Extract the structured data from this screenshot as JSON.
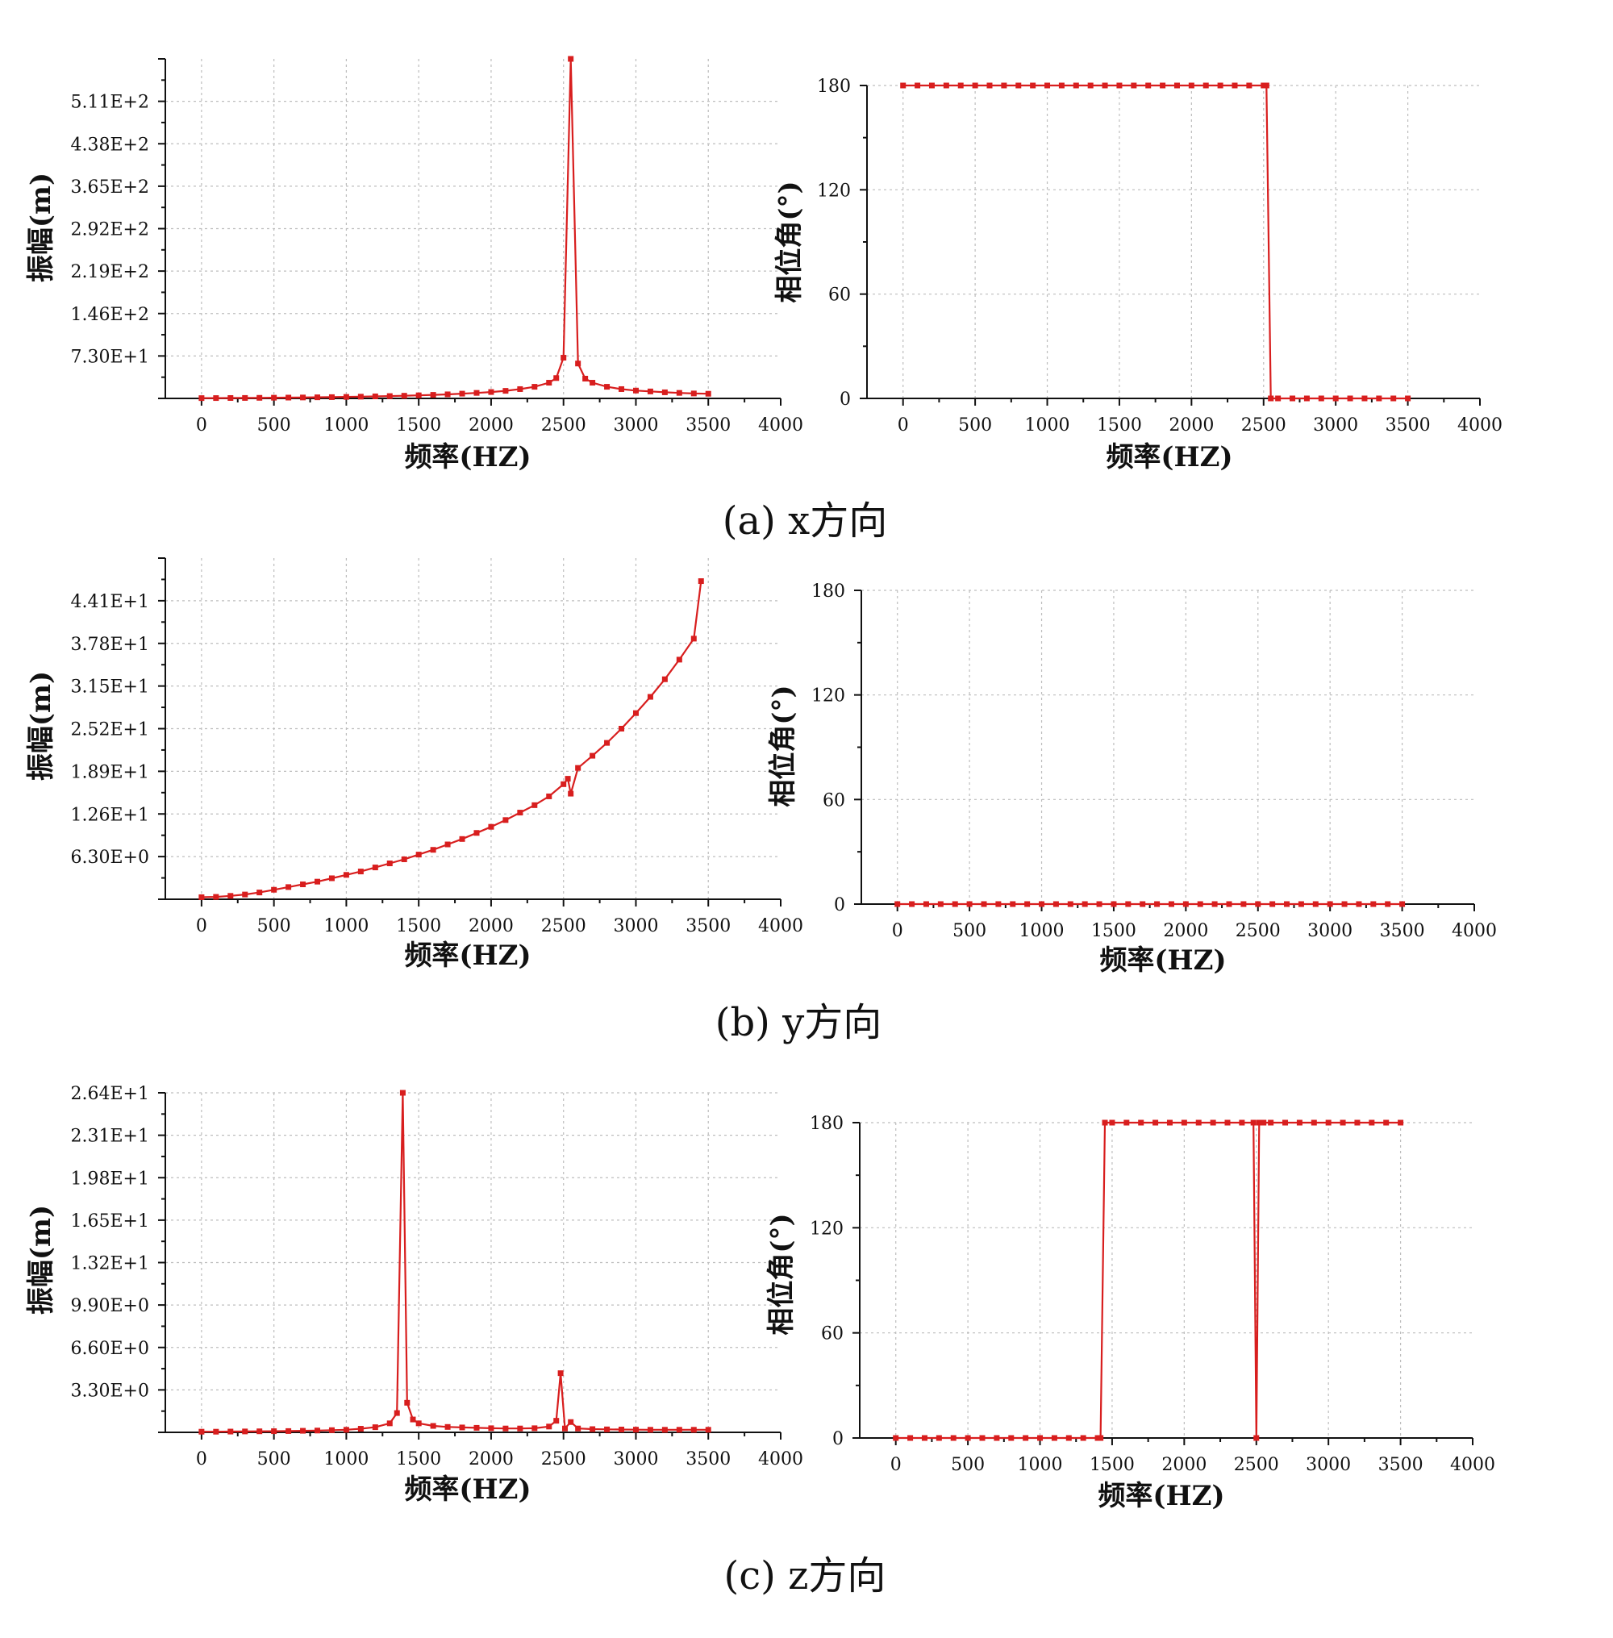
{
  "figure": {
    "captions": [
      "(a) x方向",
      "(b) y方向",
      "(c) z方向"
    ]
  },
  "colors": {
    "series": "#d81e1e",
    "grid": "#bdbdbd",
    "axis": "#111111"
  },
  "chart_data": [
    {
      "id": "a-amp",
      "type": "line",
      "xlabel": "频率(HZ)",
      "ylabel": "振幅(m)",
      "xlim": [
        -250,
        4000
      ],
      "ylim": [
        0,
        584
      ],
      "xticks": [
        0,
        500,
        1000,
        1500,
        2000,
        2500,
        3000,
        3500,
        4000
      ],
      "yticks": [
        73,
        146,
        219,
        292,
        365,
        438,
        511
      ],
      "ytick_labels": [
        "7.30E+1",
        "1.46E+2",
        "2.19E+2",
        "2.92E+2",
        "3.65E+2",
        "4.38E+2",
        "5.11E+2"
      ],
      "grid": true,
      "x": [
        0,
        100,
        200,
        300,
        400,
        500,
        600,
        700,
        800,
        900,
        1000,
        1100,
        1200,
        1300,
        1400,
        1500,
        1600,
        1700,
        1800,
        1900,
        2000,
        2100,
        2200,
        2300,
        2400,
        2450,
        2500,
        2550,
        2600,
        2650,
        2700,
        2800,
        2900,
        3000,
        3100,
        3200,
        3300,
        3400,
        3500
      ],
      "y": [
        0.5,
        0.6,
        0.7,
        0.8,
        1,
        1.2,
        1.4,
        1.6,
        1.9,
        2.2,
        2.6,
        3,
        3.5,
        4,
        4.6,
        5.3,
        6.1,
        7,
        8.2,
        9.5,
        11,
        13,
        16,
        20,
        27,
        35,
        70,
        584,
        60,
        34,
        27,
        20,
        16,
        13.5,
        12,
        10.5,
        9.5,
        8.5,
        8
      ]
    },
    {
      "id": "a-phase",
      "type": "line",
      "xlabel": "频率(HZ)",
      "ylabel": "相位角(°)",
      "xlim": [
        -250,
        4000
      ],
      "ylim": [
        0,
        180
      ],
      "xticks": [
        0,
        500,
        1000,
        1500,
        2000,
        2500,
        3000,
        3500,
        4000
      ],
      "yticks": [
        0,
        60,
        120,
        180
      ],
      "ytick_labels": [
        "0",
        "60",
        "120",
        "180"
      ],
      "grid": true,
      "x": [
        0,
        100,
        200,
        300,
        400,
        500,
        600,
        700,
        800,
        900,
        1000,
        1100,
        1200,
        1300,
        1400,
        1500,
        1600,
        1700,
        1800,
        1900,
        2000,
        2100,
        2200,
        2300,
        2400,
        2500,
        2520,
        2550,
        2600,
        2700,
        2800,
        2900,
        3000,
        3100,
        3200,
        3300,
        3400,
        3500
      ],
      "y": [
        180,
        180,
        180,
        180,
        180,
        180,
        180,
        180,
        180,
        180,
        180,
        180,
        180,
        180,
        180,
        180,
        180,
        180,
        180,
        180,
        180,
        180,
        180,
        180,
        180,
        180,
        180,
        0,
        0,
        0,
        0,
        0,
        0,
        0,
        0,
        0,
        0,
        0
      ]
    },
    {
      "id": "b-amp",
      "type": "line",
      "xlabel": "频率(HZ)",
      "ylabel": "振幅(m)",
      "xlim": [
        -250,
        4000
      ],
      "ylim": [
        0,
        50.4
      ],
      "xticks": [
        0,
        500,
        1000,
        1500,
        2000,
        2500,
        3000,
        3500,
        4000
      ],
      "yticks": [
        6.3,
        12.6,
        18.9,
        25.2,
        31.5,
        37.8,
        44.1
      ],
      "ytick_labels": [
        "6.30E+0",
        "1.26E+1",
        "1.89E+1",
        "2.52E+1",
        "3.15E+1",
        "3.78E+1",
        "4.41E+1"
      ],
      "grid": true,
      "x": [
        0,
        100,
        200,
        300,
        400,
        500,
        600,
        700,
        800,
        900,
        1000,
        1100,
        1200,
        1300,
        1400,
        1500,
        1600,
        1700,
        1800,
        1900,
        2000,
        2100,
        2200,
        2300,
        2400,
        2500,
        2530,
        2550,
        2600,
        2700,
        2800,
        2900,
        3000,
        3100,
        3200,
        3300,
        3400,
        3450
      ],
      "y": [
        0.3,
        0.35,
        0.5,
        0.7,
        1,
        1.4,
        1.8,
        2.2,
        2.6,
        3.1,
        3.6,
        4.1,
        4.7,
        5.3,
        5.9,
        6.6,
        7.3,
        8.1,
        8.9,
        9.8,
        10.7,
        11.7,
        12.8,
        13.9,
        15.2,
        17,
        17.8,
        15.6,
        19.4,
        21.2,
        23.1,
        25.2,
        27.5,
        29.9,
        32.5,
        35.4,
        38.5,
        47
      ]
    },
    {
      "id": "b-phase",
      "type": "line",
      "xlabel": "频率(HZ)",
      "ylabel": "相位角(°)",
      "xlim": [
        -250,
        4000
      ],
      "ylim": [
        0,
        180
      ],
      "xticks": [
        0,
        500,
        1000,
        1500,
        2000,
        2500,
        3000,
        3500,
        4000
      ],
      "yticks": [
        0,
        60,
        120,
        180
      ],
      "ytick_labels": [
        "0",
        "60",
        "120",
        "180"
      ],
      "grid": true,
      "x": [
        0,
        100,
        200,
        300,
        400,
        500,
        600,
        700,
        800,
        900,
        1000,
        1100,
        1200,
        1300,
        1400,
        1500,
        1600,
        1700,
        1800,
        1900,
        2000,
        2100,
        2200,
        2300,
        2400,
        2500,
        2600,
        2700,
        2800,
        2900,
        3000,
        3100,
        3200,
        3300,
        3400,
        3500
      ],
      "y": [
        0,
        0,
        0,
        0,
        0,
        0,
        0,
        0,
        0,
        0,
        0,
        0,
        0,
        0,
        0,
        0,
        0,
        0,
        0,
        0,
        0,
        0,
        0,
        0,
        0,
        0,
        0,
        0,
        0,
        0,
        0,
        0,
        0,
        0,
        0,
        0
      ]
    },
    {
      "id": "c-amp",
      "type": "line",
      "xlabel": "频率(HZ)",
      "ylabel": "振幅(m)",
      "xlim": [
        -250,
        4000
      ],
      "ylim": [
        0,
        26.4
      ],
      "xticks": [
        0,
        500,
        1000,
        1500,
        2000,
        2500,
        3000,
        3500,
        4000
      ],
      "yticks": [
        3.3,
        6.6,
        9.9,
        13.2,
        16.5,
        19.8,
        23.1,
        26.4
      ],
      "ytick_labels": [
        "3.30E+0",
        "6.60E+0",
        "9.90E+0",
        "1.32E+1",
        "1.65E+1",
        "1.98E+1",
        "2.31E+1",
        "2.64E+1"
      ],
      "grid": true,
      "x": [
        0,
        100,
        200,
        300,
        400,
        500,
        600,
        700,
        800,
        900,
        1000,
        1100,
        1200,
        1300,
        1350,
        1390,
        1420,
        1460,
        1500,
        1600,
        1700,
        1800,
        1900,
        2000,
        2100,
        2200,
        2300,
        2400,
        2450,
        2480,
        2510,
        2550,
        2600,
        2700,
        2800,
        2900,
        3000,
        3100,
        3200,
        3300,
        3400,
        3500
      ],
      "y": [
        0.05,
        0.05,
        0.06,
        0.07,
        0.08,
        0.09,
        0.1,
        0.12,
        0.14,
        0.17,
        0.2,
        0.28,
        0.4,
        0.7,
        1.5,
        26.4,
        2.3,
        1,
        0.7,
        0.5,
        0.42,
        0.38,
        0.35,
        0.32,
        0.3,
        0.3,
        0.32,
        0.45,
        0.9,
        4.6,
        0.3,
        0.8,
        0.3,
        0.25,
        0.23,
        0.22,
        0.21,
        0.2,
        0.2,
        0.2,
        0.2,
        0.2
      ]
    },
    {
      "id": "c-phase",
      "type": "line",
      "xlabel": "频率(HZ)",
      "ylabel": "相位角(°)",
      "xlim": [
        -250,
        4000
      ],
      "ylim": [
        0,
        180
      ],
      "xticks": [
        0,
        500,
        1000,
        1500,
        2000,
        2500,
        3000,
        3500,
        4000
      ],
      "yticks": [
        0,
        60,
        120,
        180
      ],
      "ytick_labels": [
        "0",
        "60",
        "120",
        "180"
      ],
      "grid": true,
      "x": [
        0,
        100,
        200,
        300,
        400,
        500,
        600,
        700,
        800,
        900,
        1000,
        1100,
        1200,
        1300,
        1400,
        1420,
        1450,
        1500,
        1600,
        1700,
        1800,
        1900,
        2000,
        2100,
        2200,
        2300,
        2400,
        2480,
        2500,
        2520,
        2550,
        2600,
        2700,
        2800,
        2900,
        3000,
        3100,
        3200,
        3300,
        3400,
        3500
      ],
      "y": [
        0,
        0,
        0,
        0,
        0,
        0,
        0,
        0,
        0,
        0,
        0,
        0,
        0,
        0,
        0,
        0,
        180,
        180,
        180,
        180,
        180,
        180,
        180,
        180,
        180,
        180,
        180,
        180,
        0,
        180,
        180,
        180,
        180,
        180,
        180,
        180,
        180,
        180,
        180,
        180,
        180
      ]
    }
  ]
}
